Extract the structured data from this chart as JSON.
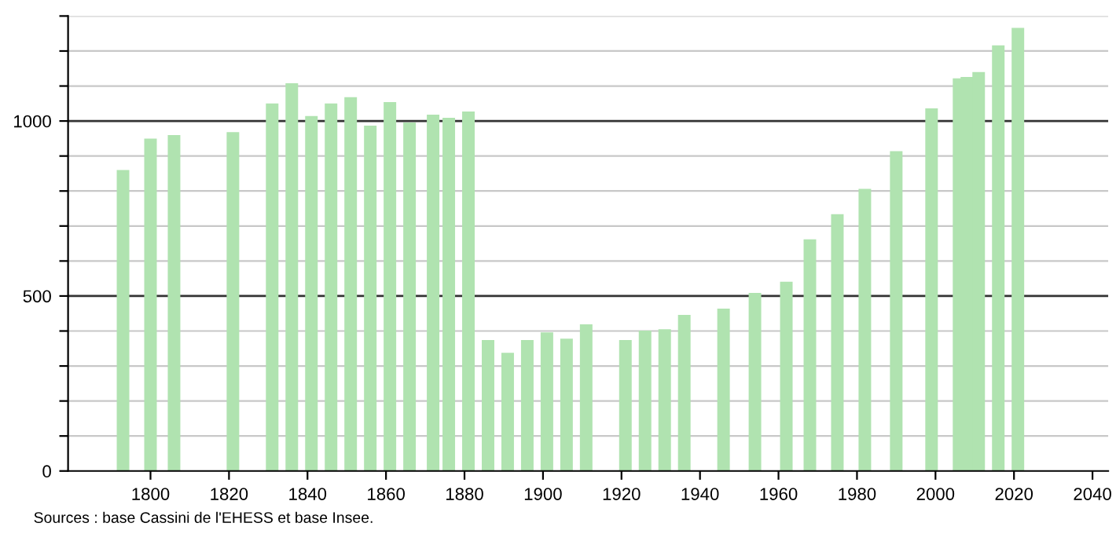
{
  "chart_data": {
    "type": "bar",
    "x": [
      1793,
      1800,
      1806,
      1821,
      1831,
      1836,
      1841,
      1846,
      1851,
      1856,
      1861,
      1866,
      1872,
      1876,
      1881,
      1886,
      1891,
      1896,
      1901,
      1906,
      1911,
      1921,
      1926,
      1931,
      1936,
      1946,
      1954,
      1962,
      1968,
      1975,
      1982,
      1990,
      1999,
      2006,
      2008,
      2011,
      2016,
      2021
    ],
    "values": [
      860,
      950,
      960,
      968,
      1050,
      1108,
      1014,
      1050,
      1068,
      987,
      1054,
      996,
      1018,
      1009,
      1027,
      374,
      338,
      374,
      396,
      378,
      419,
      374,
      401,
      405,
      446,
      464,
      509,
      541,
      662,
      734,
      806,
      914,
      1036,
      1122,
      1126,
      1140,
      1216,
      1266
    ],
    "color": "#b0e3b0",
    "xlim": [
      1779,
      2044
    ],
    "xticks": [
      1800,
      1820,
      1840,
      1860,
      1880,
      1900,
      1920,
      1940,
      1960,
      1980,
      2000,
      2020,
      2040
    ],
    "ylim": [
      0,
      1300
    ],
    "yticks": [
      0,
      {
        "value": 100,
        "label": null
      },
      {
        "value": 200,
        "label": null
      },
      {
        "value": 300,
        "label": null
      },
      {
        "value": 400,
        "label": null
      },
      500,
      {
        "value": 600,
        "label": null
      },
      {
        "value": 700,
        "label": null
      },
      {
        "value": 800,
        "label": null
      },
      {
        "value": 900,
        "label": null
      },
      1000,
      {
        "value": 1100,
        "label": null
      },
      {
        "value": 1200,
        "label": null
      },
      {
        "value": 1300,
        "label": null
      }
    ],
    "grid": "y",
    "legend": false,
    "annotations": [
      "Sources : base Cassini de l'EHESS et base Insee."
    ]
  }
}
